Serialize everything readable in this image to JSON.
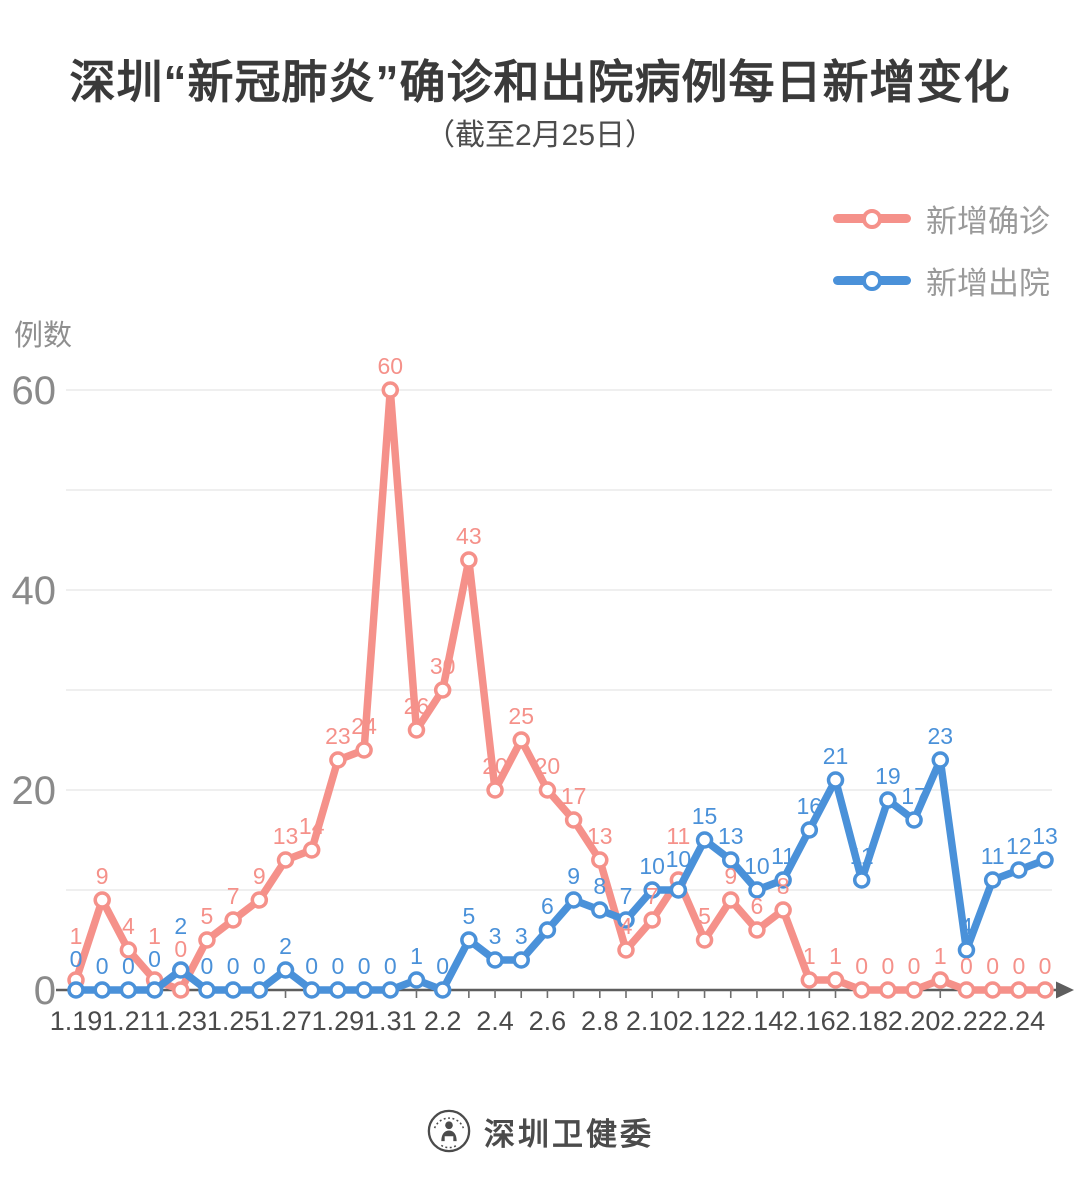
{
  "page": {
    "footer": {
      "org_name": "深圳卫健委"
    }
  },
  "chart_data": {
    "type": "line",
    "title": "深圳“新冠肺炎”确诊和出院病例每日新增变化",
    "subtitle": "（截至2月25日）",
    "ylabel": "例数",
    "xlabel": "",
    "ylim": [
      0,
      60
    ],
    "y_ticks": [
      0,
      20,
      40,
      60
    ],
    "grid": true,
    "gridline_step": 10,
    "legend_position": "top-right",
    "x_label_every": 2,
    "categories": [
      "1.19",
      "1.20",
      "1.21",
      "1.22",
      "1.23",
      "1.24",
      "1.25",
      "1.26",
      "1.27",
      "1.28",
      "1.29",
      "1.30",
      "1.31",
      "2.1",
      "2.2",
      "2.3",
      "2.4",
      "2.5",
      "2.6",
      "2.7",
      "2.8",
      "2.9",
      "2.10",
      "2.11",
      "2.12",
      "2.13",
      "2.14",
      "2.15",
      "2.16",
      "2.17",
      "2.18",
      "2.19",
      "2.20",
      "2.21",
      "2.22",
      "2.23",
      "2.24",
      "2.25"
    ],
    "series": [
      {
        "name": "新增确诊",
        "color": "#F5918A",
        "values": [
          1,
          9,
          4,
          1,
          0,
          5,
          7,
          9,
          13,
          14,
          23,
          24,
          60,
          26,
          30,
          43,
          20,
          25,
          20,
          17,
          13,
          4,
          7,
          11,
          5,
          9,
          6,
          8,
          1,
          1,
          0,
          0,
          0,
          1,
          0,
          0,
          0,
          0
        ]
      },
      {
        "name": "新增出院",
        "color": "#4A91D9",
        "values": [
          0,
          0,
          0,
          0,
          2,
          0,
          0,
          0,
          2,
          0,
          0,
          0,
          0,
          1,
          0,
          5,
          3,
          3,
          6,
          9,
          8,
          7,
          10,
          10,
          15,
          13,
          10,
          11,
          16,
          21,
          11,
          19,
          17,
          23,
          4,
          11,
          12,
          13
        ]
      }
    ]
  }
}
